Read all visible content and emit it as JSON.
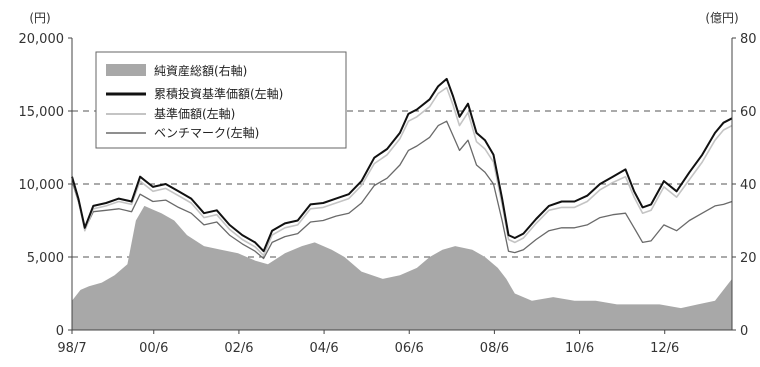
{
  "header_text": "",
  "chart_data": {
    "type": "area",
    "unit_left": "(円)",
    "unit_right": "(億円)",
    "x_ticks": [
      "98/7",
      "00/6",
      "02/6",
      "04/6",
      "06/6",
      "08/6",
      "10/6",
      "12/6"
    ],
    "x_tick_values": [
      1998.5,
      2000.42,
      2002.42,
      2004.42,
      2006.42,
      2008.42,
      2010.42,
      2012.42
    ],
    "x_range": [
      1998.5,
      2014.0
    ],
    "y_left_ticks": [
      "0",
      "5,000",
      "10,000",
      "15,000",
      "20,000"
    ],
    "y_left_range": [
      0,
      20000
    ],
    "y_right_ticks": [
      "0",
      "20",
      "40",
      "60",
      "80"
    ],
    "y_right_range": [
      0,
      80
    ],
    "grid": "dashed horizontal at 5,000 / 10,000 / 15,000",
    "legend_position": "top-left",
    "legend": [
      {
        "label": "純資産総額(右軸)",
        "style": "area",
        "color": "#a8a8a8"
      },
      {
        "label": "累積投資基準価額(左軸)",
        "style": "line",
        "color": "#111111"
      },
      {
        "label": "基準価額(左軸)",
        "style": "line",
        "color": "#c4c4c4"
      },
      {
        "label": "ベンチマーク(左軸)",
        "style": "line",
        "color": "#6a6a6a"
      }
    ],
    "series": [
      {
        "name": "純資産総額(右軸)",
        "axis": "right",
        "x": [
          1998.5,
          1998.7,
          1998.9,
          1999.2,
          1999.5,
          1999.8,
          2000.0,
          2000.2,
          2000.4,
          2000.6,
          2000.9,
          2001.2,
          2001.6,
          2002.0,
          2002.4,
          2002.8,
          2003.1,
          2003.5,
          2003.9,
          2004.2,
          2004.6,
          2004.9,
          2005.3,
          2005.8,
          2006.2,
          2006.6,
          2006.9,
          2007.2,
          2007.5,
          2007.9,
          2008.2,
          2008.5,
          2008.7,
          2008.9,
          2009.3,
          2009.8,
          2010.3,
          2010.8,
          2011.3,
          2011.8,
          2012.3,
          2012.8,
          2013.2,
          2013.6,
          2014.0
        ],
        "values": [
          8,
          11,
          12,
          13,
          15,
          18,
          30,
          34,
          33,
          32,
          30,
          26,
          23,
          22,
          21,
          19,
          18,
          21,
          23,
          24,
          22,
          20,
          16,
          14,
          15,
          17,
          20,
          22,
          23,
          22,
          20,
          17,
          14,
          10,
          8,
          9,
          8,
          8,
          7,
          7,
          7,
          6,
          7,
          8,
          14
        ]
      },
      {
        "name": "累積投資基準価額(左軸)",
        "axis": "left",
        "x": [
          1998.5,
          1998.65,
          1998.8,
          1999.0,
          1999.3,
          1999.6,
          1999.9,
          2000.1,
          2000.4,
          2000.7,
          2001.0,
          2001.3,
          2001.6,
          2001.9,
          2002.2,
          2002.5,
          2002.8,
          2003.0,
          2003.2,
          2003.5,
          2003.8,
          2004.1,
          2004.4,
          2004.7,
          2005.0,
          2005.3,
          2005.6,
          2005.9,
          2006.2,
          2006.4,
          2006.6,
          2006.9,
          2007.1,
          2007.3,
          2007.45,
          2007.6,
          2007.8,
          2008.0,
          2008.2,
          2008.4,
          2008.6,
          2008.75,
          2008.9,
          2009.1,
          2009.4,
          2009.7,
          2010.0,
          2010.3,
          2010.6,
          2010.9,
          2011.2,
          2011.5,
          2011.7,
          2011.9,
          2012.1,
          2012.4,
          2012.7,
          2013.0,
          2013.3,
          2013.6,
          2013.8,
          2014.0
        ],
        "values": [
          10500,
          9000,
          7000,
          8500,
          8700,
          9000,
          8800,
          10500,
          9800,
          10000,
          9500,
          9000,
          8000,
          8200,
          7200,
          6500,
          6000,
          5400,
          6800,
          7300,
          7500,
          8600,
          8700,
          9000,
          9300,
          10200,
          11800,
          12400,
          13500,
          14800,
          15100,
          15800,
          16700,
          17200,
          16000,
          14600,
          15500,
          13500,
          13000,
          12000,
          9000,
          6500,
          6300,
          6600,
          7600,
          8500,
          8800,
          8800,
          9200,
          10000,
          10500,
          11000,
          9500,
          8400,
          8600,
          10200,
          9500,
          10800,
          12000,
          13500,
          14200,
          14500
        ]
      },
      {
        "name": "基準価額(左軸)",
        "axis": "left",
        "x": [
          1998.5,
          1998.65,
          1998.8,
          1999.0,
          1999.3,
          1999.6,
          1999.9,
          2000.1,
          2000.4,
          2000.7,
          2001.0,
          2001.3,
          2001.6,
          2001.9,
          2002.2,
          2002.5,
          2002.8,
          2003.0,
          2003.2,
          2003.5,
          2003.8,
          2004.1,
          2004.4,
          2004.7,
          2005.0,
          2005.3,
          2005.6,
          2005.9,
          2006.2,
          2006.4,
          2006.6,
          2006.9,
          2007.1,
          2007.3,
          2007.45,
          2007.6,
          2007.8,
          2008.0,
          2008.2,
          2008.4,
          2008.6,
          2008.75,
          2008.9,
          2009.1,
          2009.4,
          2009.7,
          2010.0,
          2010.3,
          2010.6,
          2010.9,
          2011.2,
          2011.5,
          2011.7,
          2011.9,
          2012.1,
          2012.4,
          2012.7,
          2013.0,
          2013.3,
          2013.6,
          2013.8,
          2014.0
        ],
        "values": [
          10400,
          8900,
          6800,
          8300,
          8500,
          8800,
          8600,
          10200,
          9500,
          9700,
          9200,
          8700,
          7700,
          7900,
          6900,
          6200,
          5700,
          5100,
          6500,
          7000,
          7200,
          8300,
          8400,
          8700,
          9000,
          9900,
          11400,
          12000,
          13100,
          14300,
          14600,
          15300,
          16200,
          16600,
          15400,
          14000,
          14900,
          12900,
          12400,
          11500,
          8600,
          6200,
          6000,
          6300,
          7300,
          8200,
          8400,
          8400,
          8800,
          9600,
          10100,
          10500,
          9100,
          8000,
          8200,
          9800,
          9100,
          10300,
          11500,
          13000,
          13700,
          14000
        ]
      },
      {
        "name": "ベンチマーク(左軸)",
        "axis": "left",
        "x": [
          1998.5,
          1998.65,
          1998.8,
          1999.0,
          1999.3,
          1999.6,
          1999.9,
          2000.1,
          2000.4,
          2000.7,
          2001.0,
          2001.3,
          2001.6,
          2001.9,
          2002.2,
          2002.5,
          2002.8,
          2003.0,
          2003.2,
          2003.5,
          2003.8,
          2004.1,
          2004.4,
          2004.7,
          2005.0,
          2005.3,
          2005.6,
          2005.9,
          2006.2,
          2006.4,
          2006.6,
          2006.9,
          2007.1,
          2007.3,
          2007.45,
          2007.6,
          2007.8,
          2008.0,
          2008.2,
          2008.4,
          2008.6,
          2008.75,
          2008.9,
          2009.1,
          2009.4,
          2009.7,
          2010.0,
          2010.3,
          2010.6,
          2010.9,
          2011.2,
          2011.5,
          2011.7,
          2011.9,
          2012.1,
          2012.4,
          2012.7,
          2013.0,
          2013.3,
          2013.6,
          2013.8,
          2014.0
        ],
        "values": [
          10200,
          8800,
          6900,
          8100,
          8200,
          8300,
          8100,
          9300,
          8800,
          8900,
          8400,
          8000,
          7200,
          7400,
          6500,
          5900,
          5400,
          4900,
          6000,
          6400,
          6600,
          7400,
          7500,
          7800,
          8000,
          8700,
          9900,
          10400,
          11300,
          12300,
          12600,
          13200,
          14000,
          14300,
          13300,
          12300,
          13000,
          11300,
          10800,
          10000,
          7500,
          5400,
          5300,
          5500,
          6200,
          6800,
          7000,
          7000,
          7200,
          7700,
          7900,
          8000,
          7000,
          6000,
          6100,
          7200,
          6800,
          7500,
          8000,
          8500,
          8600,
          8800
        ]
      }
    ]
  }
}
